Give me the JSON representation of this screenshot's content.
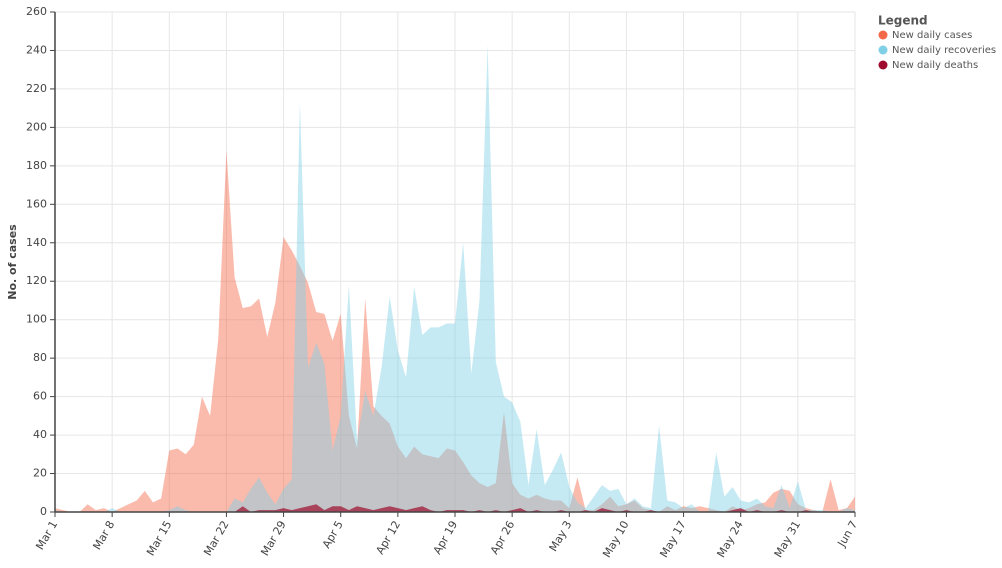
{
  "chart_data": {
    "type": "area",
    "y_label": "No. of cases",
    "legend_title": "Legend",
    "grid": true,
    "ylim": [
      0,
      260
    ],
    "yticks": [
      0,
      20,
      40,
      60,
      80,
      100,
      120,
      140,
      160,
      180,
      200,
      220,
      240,
      260
    ],
    "categories": [
      "Mar 1",
      null,
      null,
      null,
      null,
      null,
      null,
      "Mar 8",
      null,
      null,
      null,
      null,
      null,
      null,
      "Mar 15",
      null,
      null,
      null,
      null,
      null,
      null,
      "Mar 22",
      null,
      null,
      null,
      null,
      null,
      null,
      "Mar 29",
      null,
      null,
      null,
      null,
      null,
      null,
      "Apr 5",
      null,
      null,
      null,
      null,
      null,
      null,
      "Apr 12",
      null,
      null,
      null,
      null,
      null,
      null,
      "Apr 19",
      null,
      null,
      null,
      null,
      null,
      null,
      "Apr 26",
      null,
      null,
      null,
      null,
      null,
      null,
      "May 3",
      null,
      null,
      null,
      null,
      null,
      null,
      "May 10",
      null,
      null,
      null,
      null,
      null,
      null,
      "May 17",
      null,
      null,
      null,
      null,
      null,
      null,
      "May 24",
      null,
      null,
      null,
      null,
      null,
      null,
      "May 31",
      null,
      null,
      null,
      null,
      null,
      null,
      "Jun 7"
    ],
    "series": [
      {
        "name": "New daily cases",
        "color": "#f4684a",
        "values": [
          2,
          1,
          0,
          0,
          4,
          1,
          2,
          0,
          2,
          4,
          6,
          11,
          5,
          7,
          32,
          33,
          30,
          35,
          60,
          50,
          90,
          188,
          122,
          106,
          107,
          111,
          91,
          109,
          143,
          136,
          128,
          119,
          104,
          103,
          89,
          103,
          50,
          33,
          111,
          55,
          50,
          46,
          34,
          28,
          34,
          30,
          29,
          28,
          33,
          32,
          26,
          19,
          15,
          13,
          15,
          52,
          15,
          9,
          7,
          9,
          7,
          6,
          6,
          2,
          18,
          1,
          1,
          4,
          8,
          3,
          4,
          6,
          2,
          1,
          0,
          3,
          1,
          3,
          2,
          3,
          2,
          1,
          0,
          3,
          1,
          2,
          4,
          5,
          10,
          12,
          11,
          4,
          2,
          1,
          0,
          17,
          1,
          2,
          8
        ]
      },
      {
        "name": "New daily recoveries",
        "color": "#7fd0e6",
        "values": [
          1,
          0,
          0,
          0,
          0,
          0,
          0,
          2,
          0,
          0,
          0,
          0,
          0,
          0,
          1,
          3,
          1,
          0,
          0,
          0,
          0,
          0,
          7,
          5,
          12,
          18,
          10,
          4,
          12,
          17,
          213,
          75,
          88,
          77,
          32,
          50,
          118,
          37,
          63,
          50,
          75,
          112,
          84,
          70,
          117,
          92,
          96,
          96,
          98,
          98,
          140,
          72,
          110,
          243,
          78,
          60,
          57,
          47,
          14,
          43,
          14,
          22,
          31,
          13,
          5,
          2,
          8,
          14,
          11,
          12,
          4,
          7,
          3,
          2,
          45,
          6,
          5,
          2,
          4,
          0,
          0,
          31,
          8,
          13,
          6,
          5,
          7,
          3,
          2,
          14,
          2,
          16,
          1,
          1,
          1,
          0,
          0,
          2,
          1
        ]
      },
      {
        "name": "New daily deaths",
        "color": "#9e0b2e",
        "values": [
          0,
          0,
          0,
          0,
          0,
          0,
          0,
          0,
          0,
          0,
          0,
          0,
          0,
          0,
          0,
          0,
          0,
          0,
          0,
          0,
          0,
          0,
          0,
          3,
          0,
          1,
          1,
          1,
          2,
          1,
          2,
          3,
          4,
          1,
          3,
          3,
          1,
          3,
          2,
          1,
          2,
          3,
          2,
          1,
          2,
          3,
          1,
          0,
          1,
          1,
          1,
          0,
          1,
          0,
          1,
          0,
          1,
          2,
          0,
          1,
          0,
          0,
          1,
          0,
          0,
          1,
          0,
          2,
          1,
          0,
          1,
          0,
          0,
          1,
          0,
          0,
          0,
          0,
          0,
          0,
          0,
          0,
          0,
          1,
          2,
          0,
          1,
          0,
          0,
          1,
          0,
          0,
          1,
          0,
          0,
          0,
          0,
          0,
          0
        ]
      }
    ]
  }
}
